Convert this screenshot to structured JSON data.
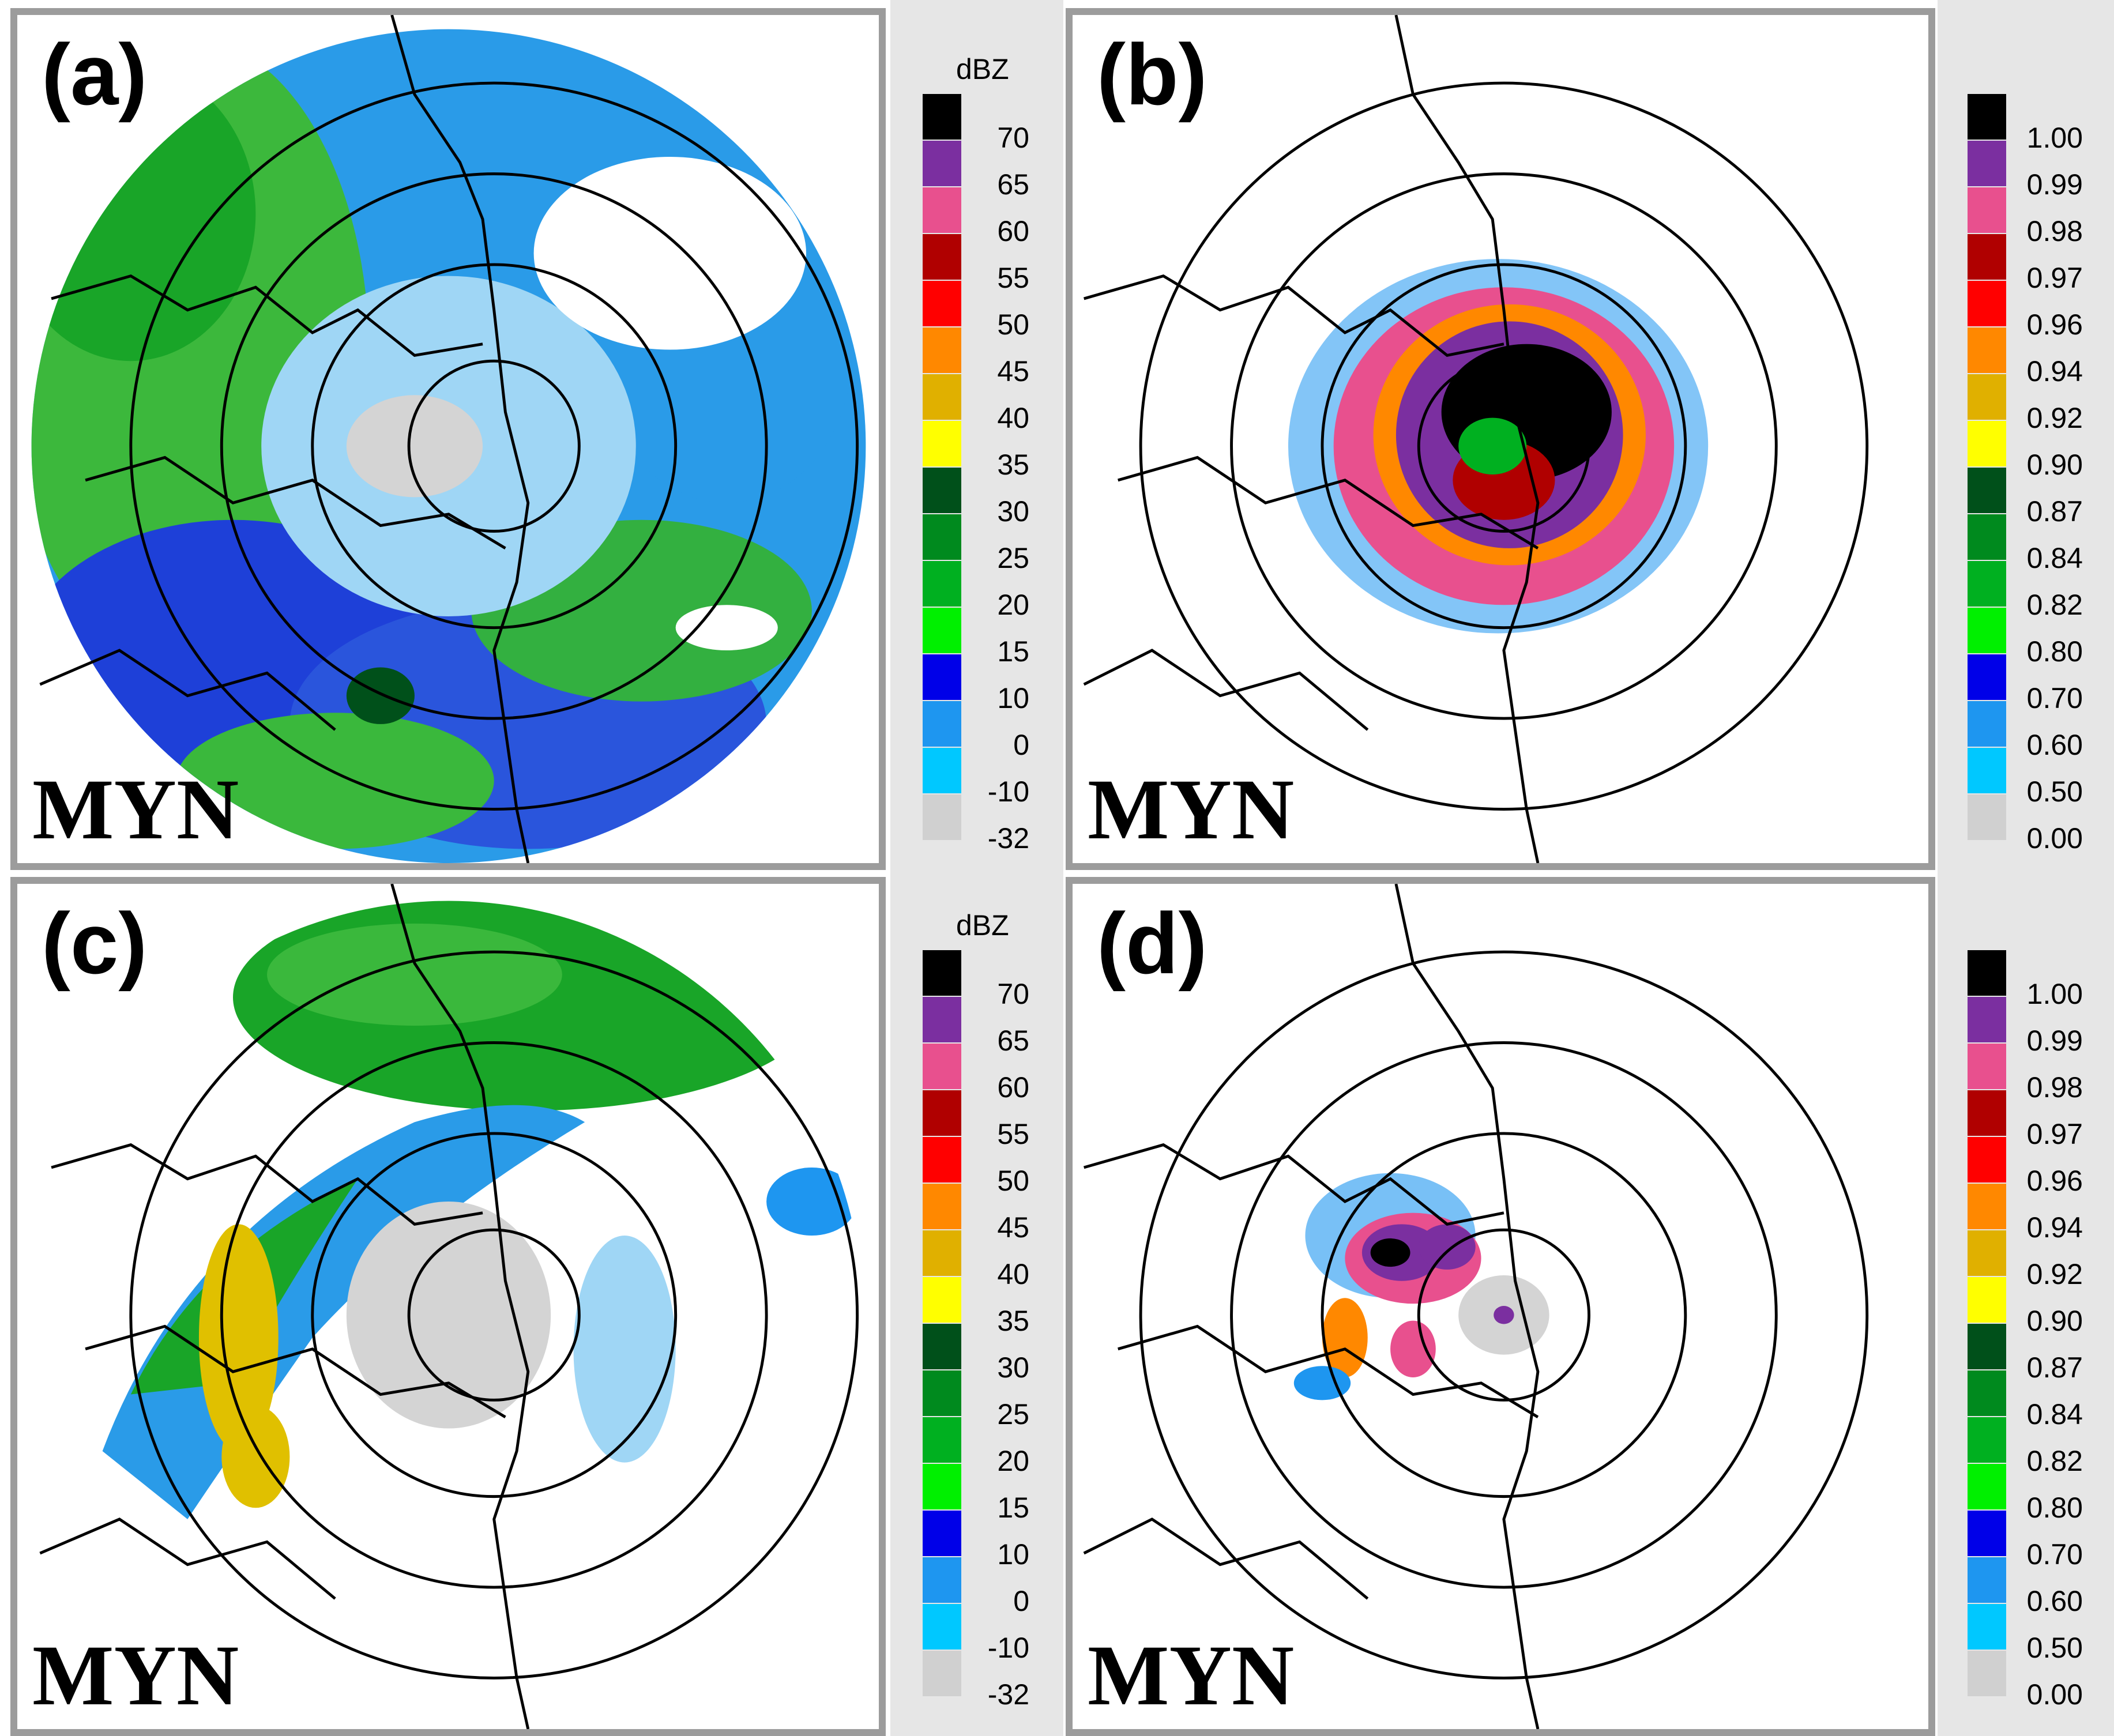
{
  "panels": [
    {
      "id": "a",
      "label": "(a)",
      "station": "MYN",
      "product": "reflectivity"
    },
    {
      "id": "b",
      "label": "(b)",
      "station": "MYN",
      "product": "correlation"
    },
    {
      "id": "c",
      "label": "(c)",
      "station": "MYN",
      "product": "reflectivity"
    },
    {
      "id": "d",
      "label": "(d)",
      "station": "MYN",
      "product": "correlation"
    }
  ],
  "legends": {
    "reflectivity": {
      "unit": "dBZ",
      "colors": [
        "#000000",
        "#7b2fa0",
        "#e8508e",
        "#b00000",
        "#ff0000",
        "#ff8800",
        "#e0b000",
        "#ffff00",
        "#00501a",
        "#008a1e",
        "#00b020",
        "#00f000",
        "#0000e8",
        "#1e96f0",
        "#00c8ff",
        "#d0d0d0"
      ],
      "values": [
        "70",
        "65",
        "60",
        "55",
        "50",
        "45",
        "40",
        "35",
        "30",
        "25",
        "20",
        "15",
        "10",
        "0",
        "-10",
        "-32"
      ]
    },
    "correlation": {
      "unit": "",
      "colors": [
        "#000000",
        "#7b2fa0",
        "#e8508e",
        "#b00000",
        "#ff0000",
        "#ff8800",
        "#e0b000",
        "#ffff00",
        "#00501a",
        "#008a1e",
        "#00b020",
        "#00f000",
        "#0000e8",
        "#1e96f0",
        "#00c8ff",
        "#d0d0d0"
      ],
      "values": [
        "1.00",
        "0.99",
        "0.98",
        "0.97",
        "0.96",
        "0.94",
        "0.92",
        "0.90",
        "0.87",
        "0.84",
        "0.82",
        "0.80",
        "0.70",
        "0.60",
        "0.50",
        "0.00"
      ]
    }
  }
}
